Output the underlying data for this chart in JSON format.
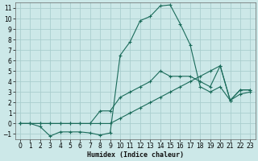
{
  "background_color": "#cce8e8",
  "grid_color": "#aacece",
  "line_color": "#1a6b5a",
  "x_label": "Humidex (Indice chaleur)",
  "xlim": [
    -0.5,
    23.5
  ],
  "ylim": [
    -1.5,
    11.5
  ],
  "xticks": [
    0,
    1,
    2,
    3,
    4,
    5,
    6,
    7,
    8,
    9,
    10,
    11,
    12,
    13,
    14,
    15,
    16,
    17,
    18,
    19,
    20,
    21,
    22,
    23
  ],
  "yticks": [
    -1,
    0,
    1,
    2,
    3,
    4,
    5,
    6,
    7,
    8,
    9,
    10,
    11
  ],
  "curve1_x": [
    0,
    1,
    2,
    3,
    4,
    5,
    6,
    7,
    8,
    9,
    10,
    11,
    12,
    13,
    14,
    15,
    16,
    17,
    18,
    19,
    20,
    21,
    22,
    23
  ],
  "curve1_y": [
    0,
    0,
    -0.3,
    -1.2,
    -0.8,
    -0.8,
    -0.8,
    -0.9,
    -1.1,
    -0.9,
    6.5,
    7.8,
    9.8,
    10.2,
    11.2,
    11.3,
    9.5,
    7.5,
    3.5,
    3.0,
    3.5,
    2.2,
    2.8,
    3.0
  ],
  "curve2_x": [
    0,
    1,
    2,
    3,
    4,
    5,
    6,
    7,
    8,
    9,
    10,
    11,
    12,
    13,
    14,
    15,
    16,
    17,
    18,
    19,
    20,
    21,
    22,
    23
  ],
  "curve2_y": [
    0,
    0,
    0,
    0,
    0,
    0,
    0,
    0,
    1.2,
    1.2,
    2.5,
    3.0,
    3.5,
    4.0,
    5.0,
    4.5,
    4.5,
    4.5,
    4.0,
    3.5,
    5.5,
    2.2,
    3.2,
    3.2
  ],
  "curve3_x": [
    0,
    1,
    2,
    3,
    4,
    5,
    6,
    7,
    8,
    9,
    10,
    11,
    12,
    13,
    14,
    15,
    16,
    17,
    18,
    19,
    20,
    21,
    22,
    23
  ],
  "curve3_y": [
    0,
    0,
    0,
    0,
    0,
    0,
    0,
    0,
    0,
    0,
    0.5,
    1.0,
    1.5,
    2.0,
    2.5,
    3.0,
    3.5,
    4.0,
    4.5,
    5.0,
    5.5,
    2.2,
    3.2,
    3.2
  ]
}
